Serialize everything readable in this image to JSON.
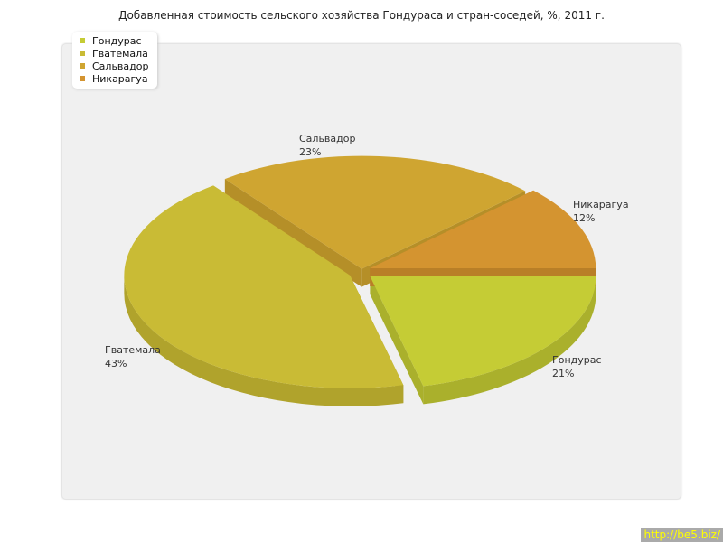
{
  "chart_data": {
    "type": "pie",
    "title": "Добавленная стоимость сельского хозяйства Гондураса и стран-соседей, %, 2011 г.",
    "categories": [
      "Гондурас",
      "Гватемала",
      "Сальвадор",
      "Никарагуа"
    ],
    "values": [
      21,
      43,
      23,
      12
    ],
    "unit": "%",
    "colors": [
      "#c5cc35",
      "#c9bb35",
      "#cfa531",
      "#d49430"
    ],
    "side_colors": [
      "#aab02c",
      "#b0a32c",
      "#b58f28",
      "#b97f27"
    ],
    "legend_position": "top-left",
    "style": "3d-exploded"
  },
  "watermark": "http://be5.biz/"
}
